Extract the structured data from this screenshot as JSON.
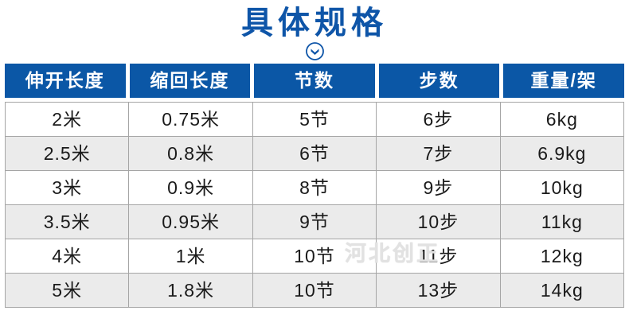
{
  "page": {
    "title": "具体规格",
    "watermark": "河北创正"
  },
  "icons": {
    "chevron": "chevron-down-circle-icon"
  },
  "colors": {
    "title_blue": "#0e55a8",
    "header_bg": "#0b57a6",
    "header_text": "#ffffff",
    "row_alt_bg": "#ebebeb",
    "border_gray": "#a5a5a5",
    "body_text": "#1a1a1a",
    "watermark_gray": "#e2e2e2"
  },
  "chart_data": {
    "type": "table",
    "title": "具体规格",
    "headers": [
      "伸开长度",
      "缩回长度",
      "节数",
      "步数",
      "重量/架"
    ],
    "rows": [
      [
        "2米",
        "0.75米",
        "5节",
        "6步",
        "6kg"
      ],
      [
        "2.5米",
        "0.8米",
        "6节",
        "7步",
        "6.9kg"
      ],
      [
        "3米",
        "0.9米",
        "8节",
        "9步",
        "10kg"
      ],
      [
        "3.5米",
        "0.95米",
        "9节",
        "10步",
        "11kg"
      ],
      [
        "4米",
        "1米",
        "10节",
        "11步",
        "12kg"
      ],
      [
        "5米",
        "1.8米",
        "10节",
        "13步",
        "14kg"
      ]
    ]
  }
}
